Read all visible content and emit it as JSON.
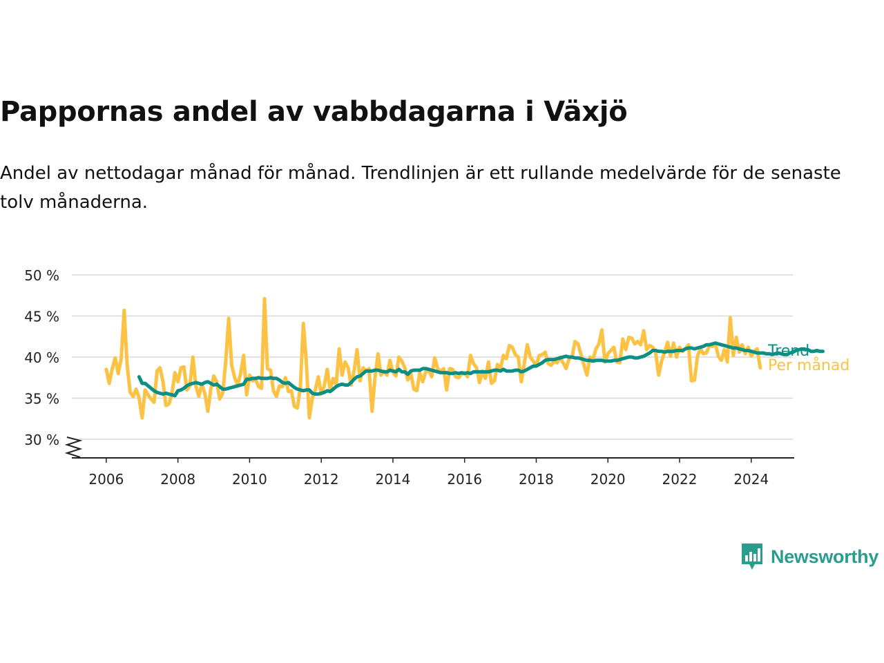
{
  "header": {
    "title": "Pappornas andel av vabbdagarna i Växjö",
    "subtitle": "Andel av nettodagar månad för månad. Trendlinjen är ett rullande medelvärde för de senaste tolv månaderna."
  },
  "brand": {
    "name": "Newsworthy",
    "icon": "newsworthy-logo-icon",
    "color": "#2a9d8f"
  },
  "chart_data": {
    "type": "line",
    "x_axis": {
      "min": 2005,
      "max": 2025.2,
      "ticks": [
        "2006",
        "2008",
        "2010",
        "2012",
        "2014",
        "2016",
        "2018",
        "2020",
        "2022",
        "2024"
      ]
    },
    "y_axis": {
      "min": 30,
      "max": 50,
      "ticks": [
        "30 %",
        "35 %",
        "40 %",
        "45 %",
        "50 %"
      ],
      "broken_axis": true
    },
    "grid": true,
    "series": [
      {
        "name": "Per månad",
        "color": "#fbc244",
        "start": 2006.0,
        "step": 0.08333,
        "values": [
          38.5,
          36.8,
          38.6,
          39.9,
          38.0,
          39.8,
          45.7,
          39.0,
          35.7,
          35.2,
          36.1,
          35.0,
          32.6,
          36.0,
          35.4,
          34.9,
          34.5,
          38.3,
          38.7,
          37.0,
          34.1,
          34.3,
          35.6,
          38.1,
          37.0,
          38.7,
          38.8,
          36.0,
          36.5,
          40.0,
          36.5,
          35.2,
          36.7,
          35.6,
          33.4,
          36.1,
          37.7,
          37.0,
          34.9,
          35.6,
          39.4,
          44.7,
          39.0,
          37.5,
          36.6,
          38.0,
          40.2,
          35.4,
          37.8,
          37.1,
          37.3,
          36.4,
          36.2,
          47.1,
          38.6,
          38.4,
          35.9,
          35.2,
          36.5,
          36.4,
          37.5,
          35.8,
          35.9,
          34.0,
          33.8,
          36.3,
          44.1,
          39.4,
          32.6,
          35.0,
          36.0,
          37.6,
          35.5,
          36.5,
          38.5,
          36.0,
          37.4,
          36.7,
          41.0,
          37.8,
          39.4,
          38.7,
          36.6,
          38.3,
          40.9,
          37.1,
          38.7,
          38.3,
          38.6,
          33.4,
          37.5,
          40.4,
          37.8,
          38.3,
          37.8,
          39.6,
          38.2,
          37.7,
          40.0,
          39.5,
          38.7,
          37.2,
          38.0,
          36.1,
          35.9,
          38.1,
          37.0,
          38.2,
          38.4,
          37.6,
          39.9,
          38.6,
          38.2,
          38.6,
          36.0,
          38.6,
          38.5,
          37.6,
          37.5,
          37.9,
          38.1,
          37.6,
          40.2,
          39.2,
          38.7,
          36.9,
          38.3,
          37.4,
          39.4,
          36.8,
          37.1,
          39.1,
          38.6,
          40.2,
          39.8,
          41.4,
          41.2,
          40.3,
          40.0,
          37.0,
          39.2,
          41.5,
          40.0,
          39.5,
          39.0,
          40.2,
          40.3,
          40.6,
          39.2,
          39.0,
          39.5,
          39.3,
          40.0,
          39.3,
          38.6,
          39.8,
          40.0,
          41.9,
          41.6,
          40.3,
          39.0,
          37.8,
          40.0,
          39.7,
          41.0,
          41.6,
          43.3,
          39.4,
          40.4,
          40.8,
          41.2,
          39.4,
          39.3,
          42.2,
          40.9,
          42.4,
          42.3,
          41.6,
          41.9,
          41.5,
          43.2,
          40.9,
          41.4,
          41.2,
          40.5,
          37.8,
          39.5,
          40.6,
          41.8,
          40.1,
          41.7,
          40.0,
          41.2,
          40.7,
          41.0,
          41.5,
          37.1,
          37.2,
          40.1,
          41.0,
          40.4,
          40.5,
          41.4,
          41.3,
          41.6,
          40.1,
          39.6,
          40.9,
          39.4,
          44.8,
          40.2,
          42.4,
          40.6,
          41.5,
          40.4,
          41.2,
          40.1,
          40.7,
          41.0,
          38.7
        ]
      },
      {
        "name": "Trend",
        "color": "#0b8f84",
        "start": 2006.9167,
        "step": 0.08333,
        "values": [
          37.6,
          36.8,
          36.8,
          36.5,
          36.2,
          35.9,
          35.7,
          35.6,
          35.5,
          35.6,
          35.5,
          35.4,
          35.3,
          35.9,
          36.0,
          36.2,
          36.5,
          36.7,
          36.8,
          36.9,
          36.8,
          36.7,
          36.9,
          37.0,
          36.8,
          36.6,
          36.7,
          36.4,
          36.1,
          36.1,
          36.2,
          36.3,
          36.4,
          36.5,
          36.6,
          36.7,
          37.3,
          37.3,
          37.4,
          37.4,
          37.5,
          37.4,
          37.4,
          37.4,
          37.5,
          37.4,
          37.4,
          37.2,
          36.9,
          36.8,
          36.9,
          36.6,
          36.3,
          36.1,
          36.0,
          35.9,
          36.0,
          36.0,
          35.6,
          35.5,
          35.5,
          35.6,
          35.7,
          35.9,
          35.8,
          36.1,
          36.4,
          36.6,
          36.7,
          36.6,
          36.6,
          36.9,
          37.3,
          37.6,
          37.7,
          38.0,
          38.3,
          38.3,
          38.3,
          38.4,
          38.4,
          38.3,
          38.2,
          38.2,
          38.4,
          38.3,
          38.2,
          38.5,
          38.2,
          38.2,
          37.9,
          38.3,
          38.4,
          38.4,
          38.4,
          38.6,
          38.6,
          38.5,
          38.4,
          38.3,
          38.2,
          38.1,
          38.1,
          38.1,
          38.0,
          38.0,
          38.1,
          38.0,
          38.1,
          38.0,
          38.1,
          38.0,
          38.2,
          38.2,
          38.2,
          38.2,
          38.2,
          38.2,
          38.3,
          38.4,
          38.4,
          38.3,
          38.5,
          38.3,
          38.3,
          38.3,
          38.4,
          38.4,
          38.2,
          38.3,
          38.5,
          38.7,
          38.9,
          38.9,
          39.1,
          39.3,
          39.6,
          39.7,
          39.7,
          39.7,
          39.8,
          39.9,
          40.0,
          40.1,
          40.0,
          40.0,
          39.9,
          39.9,
          39.8,
          39.7,
          39.6,
          39.6,
          39.5,
          39.6,
          39.6,
          39.6,
          39.5,
          39.5,
          39.5,
          39.6,
          39.6,
          39.7,
          39.8,
          39.9,
          40.0,
          40.0,
          39.9,
          39.9,
          40.0,
          40.1,
          40.3,
          40.5,
          40.8,
          40.8,
          40.7,
          40.7,
          40.6,
          40.7,
          40.7,
          40.7,
          40.8,
          40.8,
          40.8,
          41.0,
          41.1,
          41.1,
          41.0,
          41.1,
          41.2,
          41.3,
          41.5,
          41.5,
          41.6,
          41.7,
          41.6,
          41.5,
          41.4,
          41.3,
          41.2,
          41.1,
          41.1,
          41.0,
          40.9,
          40.8,
          40.8,
          40.7,
          40.6,
          40.5,
          40.5,
          40.5,
          40.4,
          40.4,
          40.3,
          40.4,
          40.5,
          40.4,
          40.3,
          40.3,
          40.5,
          40.6,
          40.8,
          40.9,
          41.0,
          40.9,
          40.9,
          40.7,
          40.7,
          40.8,
          40.7,
          40.7
        ]
      }
    ]
  }
}
